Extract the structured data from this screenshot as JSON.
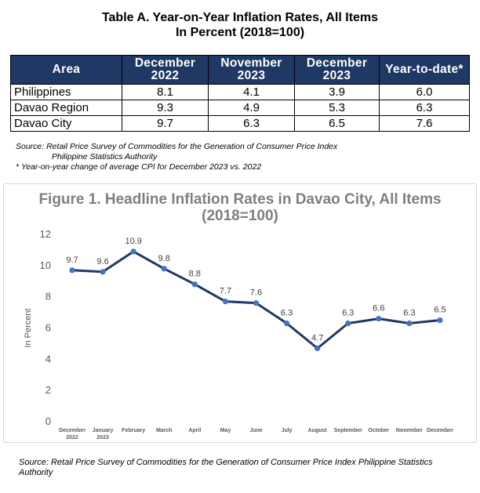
{
  "table": {
    "title_line1": "Table A. Year-on-Year Inflation Rates, All Items",
    "title_line2": "In Percent (2018=100)",
    "headers": [
      "Area",
      "December 2022",
      "November 2023",
      "December 2023",
      "Year-to-date*"
    ],
    "rows": [
      [
        "Philippines",
        "8.1",
        "4.1",
        "3.9",
        "6.0"
      ],
      [
        "Davao Region",
        "9.3",
        "4.9",
        "5.3",
        "6.3"
      ],
      [
        "Davao City",
        "9.7",
        "6.3",
        "6.5",
        "7.6"
      ]
    ],
    "source_line1": "Source: Retail Price Survey of Commodities for the Generation of Consumer Price Index",
    "source_line2": "Philippine Statistics Authority",
    "note": "* Year-on-year change of average CPI for December 2023 vs. 2022",
    "header_color": "#1f3864"
  },
  "chart_data": {
    "type": "line",
    "title_line1": "Figure 1. Headline Inflation Rates in Davao City, All Items",
    "title_line2": "(2018=100)",
    "ylabel": "In Percent",
    "xlabel": "",
    "categories": [
      [
        "December",
        "2022"
      ],
      [
        "January",
        "2023"
      ],
      [
        "February"
      ],
      [
        "March"
      ],
      [
        "April"
      ],
      [
        "May"
      ],
      [
        "June"
      ],
      [
        "July"
      ],
      [
        "August"
      ],
      [
        "September"
      ],
      [
        "October"
      ],
      [
        "November"
      ],
      [
        "December"
      ]
    ],
    "values": [
      9.7,
      9.6,
      10.9,
      9.8,
      8.8,
      7.7,
      7.6,
      6.3,
      4.7,
      6.3,
      6.6,
      6.3,
      6.5
    ],
    "data_labels": [
      "9.7",
      "9.6",
      "10.9",
      "9.8",
      "8.8",
      "7.7",
      "7.6",
      "6.3",
      "4.7",
      "6.3",
      "6.6",
      "6.3",
      "6.5"
    ],
    "yticks": [
      "0",
      "2",
      "4",
      "6",
      "8",
      "10",
      "12"
    ],
    "ylim": [
      0,
      12
    ],
    "grid": false,
    "line_color": "#1f3864",
    "marker_color": "#4472c4"
  },
  "bottom_source": "Source: Retail Price Survey of Commodities for the Generation of Consumer Price Index Philippine Statistics Authority"
}
